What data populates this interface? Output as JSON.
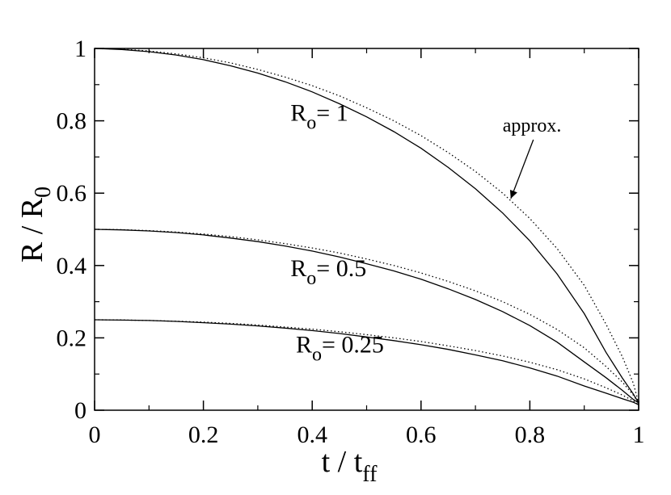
{
  "chart_data": {
    "type": "line",
    "xlabel": "t / t",
    "xlabel_sub": "ff",
    "ylabel": "R / R",
    "ylabel_sub": "0",
    "xlim": [
      0,
      1
    ],
    "ylim": [
      0,
      1
    ],
    "xticks": [
      "0",
      "0.2",
      "0.4",
      "0.6",
      "0.8",
      "1"
    ],
    "yticks": [
      "0",
      "0.2",
      "0.4",
      "0.6",
      "0.8",
      "1"
    ],
    "grid": false,
    "legend": "none",
    "series": [
      {
        "group": "R0=1",
        "style": "solid",
        "x": [
          0,
          0.05,
          0.1,
          0.15,
          0.2,
          0.25,
          0.3,
          0.35,
          0.4,
          0.45,
          0.5,
          0.55,
          0.6,
          0.65,
          0.7,
          0.75,
          0.8,
          0.85,
          0.9,
          0.94,
          0.97,
          0.99,
          1.0
        ],
        "y": [
          1.0,
          0.997,
          0.991,
          0.982,
          0.969,
          0.952,
          0.932,
          0.908,
          0.88,
          0.847,
          0.811,
          0.77,
          0.724,
          0.671,
          0.612,
          0.545,
          0.468,
          0.377,
          0.267,
          0.16,
          0.089,
          0.045,
          0.02
        ]
      },
      {
        "group": "R0=1",
        "style": "dotted",
        "x": [
          0,
          0.05,
          0.1,
          0.15,
          0.2,
          0.25,
          0.3,
          0.35,
          0.4,
          0.45,
          0.5,
          0.55,
          0.6,
          0.65,
          0.7,
          0.75,
          0.8,
          0.85,
          0.9,
          0.94,
          0.97,
          0.99,
          1.0
        ],
        "y": [
          1.0,
          0.998,
          0.993,
          0.985,
          0.974,
          0.96,
          0.942,
          0.921,
          0.897,
          0.869,
          0.836,
          0.8,
          0.759,
          0.712,
          0.66,
          0.6,
          0.53,
          0.447,
          0.345,
          0.238,
          0.148,
          0.075,
          0.02
        ]
      },
      {
        "group": "R0=0.5",
        "style": "solid",
        "x": [
          0,
          0.05,
          0.1,
          0.15,
          0.2,
          0.25,
          0.3,
          0.35,
          0.4,
          0.45,
          0.5,
          0.55,
          0.6,
          0.65,
          0.7,
          0.75,
          0.8,
          0.85,
          0.9,
          0.94,
          0.97,
          0.99,
          1.0
        ],
        "y": [
          0.5,
          0.4985,
          0.4955,
          0.491,
          0.4845,
          0.476,
          0.466,
          0.454,
          0.44,
          0.4235,
          0.405,
          0.385,
          0.362,
          0.3355,
          0.306,
          0.2725,
          0.234,
          0.1885,
          0.1335,
          0.09,
          0.055,
          0.03,
          0.02
        ]
      },
      {
        "group": "R0=0.5",
        "style": "dotted",
        "x": [
          0,
          0.05,
          0.1,
          0.15,
          0.2,
          0.25,
          0.3,
          0.35,
          0.4,
          0.45,
          0.5,
          0.55,
          0.6,
          0.65,
          0.7,
          0.75,
          0.8,
          0.85,
          0.9,
          0.94,
          0.97,
          0.99,
          1.0
        ],
        "y": [
          0.5,
          0.499,
          0.4965,
          0.4925,
          0.487,
          0.48,
          0.471,
          0.4605,
          0.4485,
          0.4345,
          0.418,
          0.4,
          0.3795,
          0.356,
          0.33,
          0.3,
          0.265,
          0.2235,
          0.1725,
          0.121,
          0.078,
          0.042,
          0.02
        ]
      },
      {
        "group": "R0=0.25",
        "style": "solid",
        "x": [
          0,
          0.05,
          0.1,
          0.15,
          0.2,
          0.25,
          0.3,
          0.35,
          0.4,
          0.45,
          0.5,
          0.55,
          0.6,
          0.65,
          0.7,
          0.75,
          0.8,
          0.85,
          0.9,
          0.94,
          0.97,
          0.99,
          1.0
        ],
        "y": [
          0.25,
          0.249,
          0.248,
          0.2455,
          0.242,
          0.238,
          0.233,
          0.227,
          0.22,
          0.212,
          0.2025,
          0.1925,
          0.181,
          0.168,
          0.153,
          0.1365,
          0.117,
          0.0945,
          0.067,
          0.047,
          0.032,
          0.022,
          0.015
        ]
      },
      {
        "group": "R0=0.25",
        "style": "dotted",
        "x": [
          0,
          0.05,
          0.1,
          0.15,
          0.2,
          0.25,
          0.3,
          0.35,
          0.4,
          0.45,
          0.5,
          0.55,
          0.6,
          0.65,
          0.7,
          0.75,
          0.8,
          0.85,
          0.9,
          0.94,
          0.97,
          0.99,
          1.0
        ],
        "y": [
          0.25,
          0.2495,
          0.248,
          0.246,
          0.2435,
          0.24,
          0.2355,
          0.23,
          0.224,
          0.217,
          0.209,
          0.2,
          0.19,
          0.178,
          0.165,
          0.15,
          0.1325,
          0.112,
          0.0865,
          0.062,
          0.042,
          0.026,
          0.015
        ]
      }
    ],
    "annotations": [
      {
        "text": "R",
        "sub": "o",
        "rest": "= 1",
        "x": 0.36,
        "y": 0.8
      },
      {
        "text": "R",
        "sub": "o",
        "rest": "= 0.5",
        "x": 0.36,
        "y": 0.37
      },
      {
        "text": "R",
        "sub": "o",
        "rest": "= 0.25",
        "x": 0.37,
        "y": 0.16
      },
      {
        "text": "approx.",
        "x": 0.75,
        "y": 0.77,
        "arrow_to": [
          0.765,
          0.585
        ]
      }
    ]
  }
}
